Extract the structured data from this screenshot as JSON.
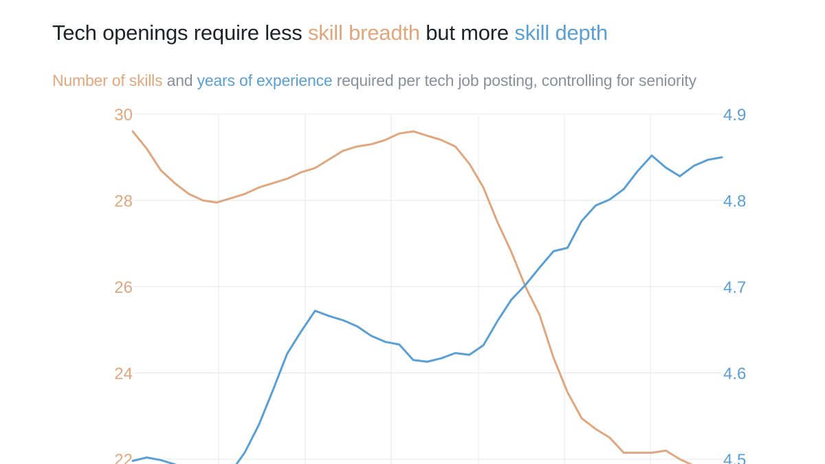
{
  "title": {
    "part1": "Tech openings require less ",
    "highlight1": "skill breadth",
    "part2": " but more ",
    "highlight2": "skill depth"
  },
  "subtitle": {
    "highlight1": "Number of skills",
    "part1": " and ",
    "highlight2": "years of experience",
    "part2": " required per tech job posting, controlling for seniority"
  },
  "colors": {
    "breadth": "#e0a67d",
    "depth": "#5a9fd4",
    "grid": "#e5e7ea"
  },
  "chart_data": {
    "type": "line",
    "dual_axis": true,
    "grid": true,
    "left_axis": {
      "ylim": [
        22,
        30
      ],
      "ticks": [
        "30",
        "28",
        "26",
        "24",
        "22"
      ]
    },
    "right_axis": {
      "ylim": [
        4.5,
        4.9
      ],
      "ticks": [
        "4.9",
        "4.8",
        "4.7",
        "4.6",
        "4.5"
      ]
    },
    "x": [
      0,
      1,
      2,
      3,
      4,
      5,
      6,
      7,
      8,
      9,
      10,
      11,
      12,
      13,
      14,
      15,
      16,
      17,
      18,
      19,
      20,
      21,
      22,
      23,
      24,
      25,
      26,
      27,
      28,
      29,
      30,
      31,
      32,
      33,
      34,
      35,
      36,
      37,
      38,
      39,
      40,
      41,
      42
    ],
    "series": [
      {
        "axis": "left",
        "color": "#e0a67d",
        "values": [
          29.6,
          29.2,
          28.7,
          28.4,
          28.15,
          28.0,
          27.95,
          28.05,
          28.15,
          28.3,
          28.4,
          28.5,
          28.65,
          28.75,
          28.95,
          29.15,
          29.25,
          29.3,
          29.4,
          29.55,
          29.6,
          29.5,
          29.4,
          29.25,
          28.85,
          28.3,
          27.5,
          26.8,
          26.0,
          25.35,
          24.35,
          23.55,
          22.95,
          22.7,
          22.5,
          22.15,
          22.15,
          22.15,
          22.2,
          22.0,
          21.85,
          21.8,
          21.7
        ]
      },
      {
        "axis": "right",
        "color": "#5a9fd4",
        "values": [
          4.498,
          4.502,
          4.499,
          4.494,
          4.488,
          4.484,
          4.482,
          4.485,
          4.508,
          4.54,
          4.58,
          4.622,
          4.648,
          4.672,
          4.666,
          4.661,
          4.654,
          4.643,
          4.636,
          4.633,
          4.615,
          4.613,
          4.617,
          4.623,
          4.621,
          4.632,
          4.66,
          4.685,
          4.702,
          4.722,
          4.741,
          4.745,
          4.776,
          4.794,
          4.801,
          4.813,
          4.834,
          4.852,
          4.838,
          4.828,
          4.84,
          4.847,
          4.85
        ]
      }
    ]
  }
}
